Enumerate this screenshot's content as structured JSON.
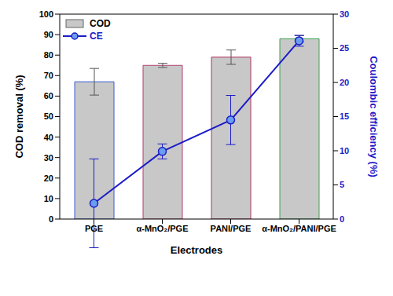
{
  "chart_data": {
    "type": "bar",
    "categories": [
      "PGE",
      "α-MnO₂/PGE",
      "PANI/PGE",
      "α-MnO₂/PANI/PGE"
    ],
    "x_label": "Electrodes",
    "y_label": "COD removal (%)",
    "y2_label": "Coulombic efficiency (%)",
    "ylim": [
      0,
      100
    ],
    "yticks": [
      0,
      10,
      20,
      30,
      40,
      50,
      60,
      70,
      80,
      90,
      100
    ],
    "y2lim": [
      0,
      30
    ],
    "y2ticks": [
      0,
      5,
      10,
      15,
      20,
      25,
      30
    ],
    "legend": "upper left",
    "grid": false,
    "series": [
      {
        "name": "COD",
        "type": "bar",
        "color": "#c8c8c8",
        "values": [
          67,
          75,
          79,
          88
        ],
        "errors": [
          6.5,
          1,
          3.5,
          1.5
        ]
      },
      {
        "name": "CE",
        "type": "line",
        "axis": "y2",
        "color": "#1c1cc8",
        "marker": "circle",
        "line_style": "solid",
        "values": [
          2.3,
          9.9,
          14.5,
          26.1
        ],
        "errors": [
          6.5,
          1.1,
          3.6,
          0.8
        ]
      }
    ]
  }
}
